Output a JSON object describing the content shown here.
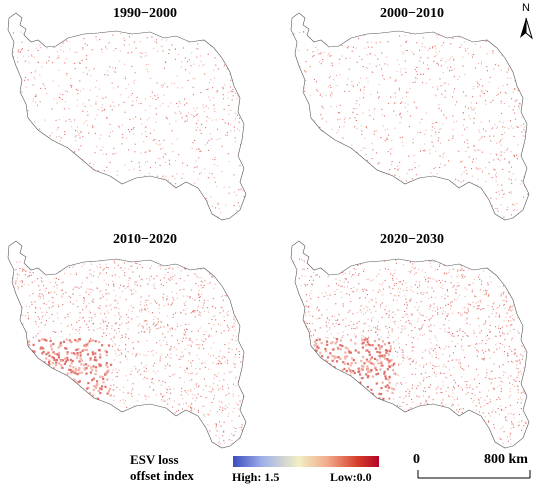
{
  "panels": [
    {
      "title": "1990−2000",
      "intensity": 0.25
    },
    {
      "title": "2000−2010",
      "intensity": 0.3
    },
    {
      "title": "2010−2020",
      "intensity": 0.55
    },
    {
      "title": "2020−2030",
      "intensity": 0.6
    }
  ],
  "north_label": "N",
  "legend": {
    "title_line1": "ESV loss",
    "title_line2": "offset index",
    "high_label": "High: 1.5",
    "low_label": "Low:0.0",
    "colors": [
      "#3b4cc0",
      "#9fb0e8",
      "#f2efc4",
      "#f2a98a",
      "#d6402a",
      "#b40426"
    ]
  },
  "scale": {
    "zero_label": "0",
    "end_label": "800 km"
  }
}
